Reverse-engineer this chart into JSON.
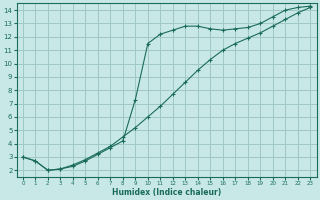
{
  "xlabel": "Humidex (Indice chaleur)",
  "bg_color": "#c8e8e8",
  "line_color": "#1a6b5a",
  "grid_color": "#a0c8c8",
  "xlim": [
    -0.5,
    23.5
  ],
  "ylim": [
    1.5,
    14.5
  ],
  "xticks": [
    0,
    1,
    2,
    3,
    4,
    5,
    6,
    7,
    8,
    9,
    10,
    11,
    12,
    13,
    14,
    15,
    16,
    17,
    18,
    19,
    20,
    21,
    22,
    23
  ],
  "yticks": [
    2,
    3,
    4,
    5,
    6,
    7,
    8,
    9,
    10,
    11,
    12,
    13,
    14
  ],
  "line1_x": [
    0,
    1,
    2,
    3,
    4,
    5,
    6,
    7,
    8,
    9,
    10,
    11,
    12,
    13,
    14,
    15,
    16,
    17,
    18,
    19,
    20,
    21,
    22,
    23
  ],
  "line1_y": [
    3.0,
    2.7,
    2.0,
    2.1,
    2.3,
    2.7,
    3.2,
    3.7,
    4.2,
    7.3,
    11.5,
    12.2,
    12.5,
    12.8,
    12.8,
    12.6,
    12.5,
    12.6,
    12.7,
    13.0,
    13.5,
    14.0,
    14.2,
    14.3
  ],
  "line2_x": [
    0,
    1,
    2,
    3,
    4,
    5,
    6,
    7,
    8,
    9,
    10,
    11,
    12,
    13,
    14,
    15,
    16,
    17,
    18,
    19,
    20,
    21,
    22,
    23
  ],
  "line2_y": [
    3.0,
    2.7,
    2.0,
    2.1,
    2.4,
    2.8,
    3.3,
    3.8,
    4.5,
    5.2,
    6.0,
    6.8,
    7.7,
    8.6,
    9.5,
    10.3,
    11.0,
    11.5,
    11.9,
    12.3,
    12.8,
    13.3,
    13.8,
    14.2
  ]
}
